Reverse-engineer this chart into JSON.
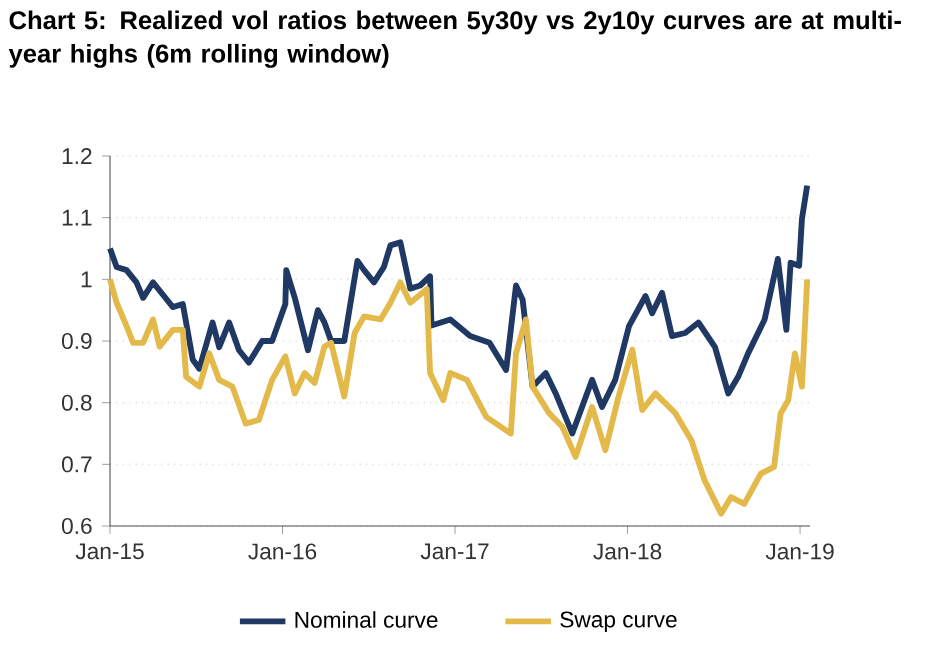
{
  "chart_data": {
    "type": "line",
    "title": "Chart 5: Realized vol ratios between 5y30y vs 2y10y curves are at multi-year highs (6m rolling window)",
    "xlim": [
      "2015-01-01",
      "2019-01-22"
    ],
    "xticks": [
      {
        "value": "2015-01-01",
        "label": "Jan-15"
      },
      {
        "value": "2016-01-01",
        "label": "Jan-16"
      },
      {
        "value": "2017-01-01",
        "label": "Jan-17"
      },
      {
        "value": "2018-01-01",
        "label": "Jan-18"
      },
      {
        "value": "2019-01-01",
        "label": "Jan-19"
      }
    ],
    "ylim": [
      0.6,
      1.2
    ],
    "yticks": [
      0.6,
      0.7,
      0.8,
      0.9,
      1,
      1.1,
      1.2
    ],
    "grid": "y",
    "legend": "bottom",
    "marker": "none",
    "line_style": "solid",
    "series": [
      {
        "name": "Nominal curve",
        "color": "#1f3864",
        "x": [
          "2015-01-01",
          "2015-01-15",
          "2015-02-05",
          "2015-02-26",
          "2015-03-12",
          "2015-04-02",
          "2015-04-23",
          "2015-05-14",
          "2015-06-04",
          "2015-06-25",
          "2015-07-09",
          "2015-08-06",
          "2015-08-20",
          "2015-09-10",
          "2015-10-01",
          "2015-10-22",
          "2015-11-19",
          "2015-12-10",
          "2016-01-07",
          "2016-01-09",
          "2016-01-27",
          "2016-02-24",
          "2016-03-16",
          "2016-03-30",
          "2016-04-13",
          "2016-05-11",
          "2016-06-08",
          "2016-06-22",
          "2016-07-13",
          "2016-08-03",
          "2016-08-17",
          "2016-09-07",
          "2016-09-28",
          "2016-10-19",
          "2016-11-09",
          "2016-11-12",
          "2016-12-22",
          "2017-02-02",
          "2017-03-15",
          "2017-04-19",
          "2017-05-10",
          "2017-05-24",
          "2017-06-14",
          "2017-07-12",
          "2017-08-02",
          "2017-09-06",
          "2017-10-18",
          "2017-11-08",
          "2017-12-06",
          "2018-01-04",
          "2018-02-08",
          "2018-02-22",
          "2018-03-15",
          "2018-04-05",
          "2018-05-03",
          "2018-05-31",
          "2018-07-05",
          "2018-08-02",
          "2018-08-23",
          "2018-09-13",
          "2018-10-18",
          "2018-11-15",
          "2018-12-03",
          "2018-12-12",
          "2018-12-30",
          "2019-01-05",
          "2019-01-16"
        ],
        "values": [
          1.05,
          1.02,
          1.015,
          0.995,
          0.97,
          0.995,
          0.975,
          0.955,
          0.96,
          0.87,
          0.855,
          0.93,
          0.89,
          0.93,
          0.885,
          0.865,
          0.9,
          0.9,
          0.96,
          1.015,
          0.97,
          0.885,
          0.95,
          0.93,
          0.9,
          0.9,
          1.03,
          1.015,
          0.995,
          1.02,
          1.055,
          1.06,
          0.985,
          0.99,
          1.005,
          0.925,
          0.935,
          0.908,
          0.897,
          0.853,
          0.99,
          0.967,
          0.826,
          0.848,
          0.815,
          0.75,
          0.837,
          0.793,
          0.837,
          0.924,
          0.973,
          0.945,
          0.978,
          0.908,
          0.913,
          0.93,
          0.89,
          0.815,
          0.842,
          0.88,
          0.935,
          1.033,
          0.918,
          1.027,
          1.022,
          1.098,
          1.152
        ]
      },
      {
        "name": "Swap curve",
        "color": "#e3b94a",
        "x": [
          "2015-01-01",
          "2015-01-15",
          "2015-02-05",
          "2015-02-19",
          "2015-03-12",
          "2015-04-02",
          "2015-04-16",
          "2015-05-14",
          "2015-06-04",
          "2015-06-11",
          "2015-07-09",
          "2015-07-30",
          "2015-08-20",
          "2015-09-17",
          "2015-10-15",
          "2015-11-12",
          "2015-12-10",
          "2016-01-07",
          "2016-01-27",
          "2016-02-17",
          "2016-03-09",
          "2016-03-30",
          "2016-04-13",
          "2016-05-11",
          "2016-06-02",
          "2016-06-22",
          "2016-07-27",
          "2016-08-17",
          "2016-09-07",
          "2016-09-28",
          "2016-11-02",
          "2016-11-09",
          "2016-12-07",
          "2016-12-22",
          "2017-01-26",
          "2017-03-08",
          "2017-04-29",
          "2017-05-10",
          "2017-05-31",
          "2017-06-14",
          "2017-07-19",
          "2017-08-16",
          "2017-09-13",
          "2017-10-18",
          "2017-11-15",
          "2017-12-13",
          "2018-01-11",
          "2018-02-01",
          "2018-03-01",
          "2018-04-12",
          "2018-05-16",
          "2018-06-13",
          "2018-07-18",
          "2018-08-08",
          "2018-09-05",
          "2018-10-10",
          "2018-11-07",
          "2018-11-21",
          "2018-12-07",
          "2018-12-21",
          "2019-01-05",
          "2019-01-16"
        ],
        "values": [
          1.0,
          0.962,
          0.924,
          0.897,
          0.897,
          0.935,
          0.891,
          0.918,
          0.918,
          0.842,
          0.826,
          0.88,
          0.837,
          0.826,
          0.766,
          0.772,
          0.837,
          0.875,
          0.815,
          0.848,
          0.832,
          0.891,
          0.897,
          0.81,
          0.913,
          0.94,
          0.935,
          0.962,
          0.995,
          0.962,
          0.984,
          0.848,
          0.804,
          0.848,
          0.837,
          0.777,
          0.75,
          0.88,
          0.935,
          0.826,
          0.783,
          0.761,
          0.712,
          0.793,
          0.723,
          0.81,
          0.886,
          0.788,
          0.815,
          0.783,
          0.739,
          0.674,
          0.62,
          0.647,
          0.636,
          0.685,
          0.696,
          0.783,
          0.804,
          0.88,
          0.826,
          1.0
        ]
      }
    ]
  }
}
